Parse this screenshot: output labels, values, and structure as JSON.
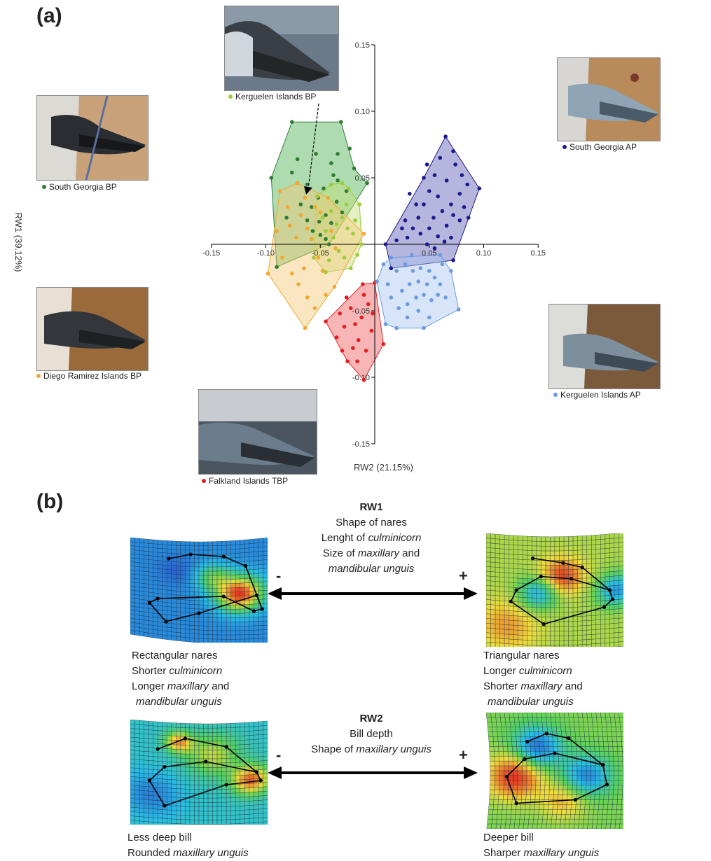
{
  "panel_a_label": "(a)",
  "panel_b_label": "(b)",
  "chart_data": {
    "type": "scatter",
    "xlabel": "RW2 (21.15%)",
    "ylabel": "RW1 (39.12%)",
    "xlim": [
      -0.15,
      0.15
    ],
    "ylim": [
      -0.15,
      0.15
    ],
    "x_ticks": [
      "-0.15",
      "-0.10",
      "-0.05",
      "0.05",
      "0.10",
      "0.15"
    ],
    "x_tick_values": [
      -0.15,
      -0.1,
      -0.05,
      0.05,
      0.1,
      0.15
    ],
    "y_ticks": [
      "0.15",
      "0.10",
      "0.05",
      "-0.05",
      "-0.10",
      "-0.15"
    ],
    "y_tick_values": [
      0.15,
      0.1,
      0.05,
      -0.05,
      -0.1,
      -0.15
    ],
    "series": [
      {
        "name": "South Georgia BP",
        "color": "#2e7d32",
        "fill": "#4caf50",
        "hull": [
          [
            -0.076,
            0.092
          ],
          [
            -0.031,
            0.092
          ],
          [
            -0.019,
            0.057
          ],
          [
            -0.007,
            0.046
          ],
          [
            -0.042,
            0.0
          ],
          [
            -0.09,
            -0.017
          ],
          [
            -0.095,
            0.05
          ]
        ],
        "points": [
          [
            -0.076,
            0.092
          ],
          [
            -0.031,
            0.092
          ],
          [
            -0.019,
            0.057
          ],
          [
            -0.007,
            0.046
          ],
          [
            -0.042,
            0.0
          ],
          [
            -0.09,
            -0.017
          ],
          [
            -0.095,
            0.05
          ],
          [
            -0.062,
            0.045
          ],
          [
            -0.058,
            0.028
          ],
          [
            -0.052,
            0.035
          ],
          [
            -0.047,
            0.042
          ],
          [
            -0.045,
            0.022
          ],
          [
            -0.04,
            0.016
          ],
          [
            -0.057,
            0.01
          ],
          [
            -0.051,
            0.017
          ],
          [
            -0.035,
            0.032
          ],
          [
            -0.03,
            0.024
          ],
          [
            -0.068,
            0.03
          ],
          [
            -0.071,
            0.064
          ],
          [
            -0.054,
            0.068
          ],
          [
            -0.04,
            0.061
          ],
          [
            -0.038,
            0.052
          ],
          [
            -0.034,
            0.048
          ],
          [
            -0.05,
            0.007
          ],
          [
            -0.045,
            0.004
          ],
          [
            -0.026,
            0.04
          ],
          [
            -0.062,
            0.018
          ],
          [
            -0.076,
            0.054
          ],
          [
            -0.081,
            0.02
          ],
          [
            -0.023,
            0.072
          ],
          [
            -0.034,
            0.068
          ]
        ]
      },
      {
        "name": "Kerguelen Islands BP",
        "color": "#9ccc3a",
        "fill": "#c5e17a",
        "hull": [
          [
            -0.053,
            0.036
          ],
          [
            -0.04,
            0.045
          ],
          [
            -0.03,
            0.046
          ],
          [
            -0.024,
            0.042
          ],
          [
            -0.014,
            0.03
          ],
          [
            -0.012,
            0.0
          ],
          [
            -0.022,
            -0.018
          ],
          [
            -0.045,
            -0.021
          ],
          [
            -0.056,
            -0.01
          ]
        ],
        "points": [
          [
            -0.053,
            0.036
          ],
          [
            -0.04,
            0.045
          ],
          [
            -0.03,
            0.046
          ],
          [
            -0.024,
            0.042
          ],
          [
            -0.014,
            0.03
          ],
          [
            -0.012,
            0.0
          ],
          [
            -0.022,
            -0.018
          ],
          [
            -0.045,
            -0.021
          ],
          [
            -0.056,
            -0.01
          ],
          [
            -0.04,
            0.025
          ],
          [
            -0.035,
            0.015
          ],
          [
            -0.03,
            0.02
          ],
          [
            -0.025,
            0.012
          ],
          [
            -0.02,
            0.008
          ],
          [
            -0.038,
            0.005
          ],
          [
            -0.033,
            -0.005
          ],
          [
            -0.028,
            -0.01
          ],
          [
            -0.045,
            0.01
          ],
          [
            -0.018,
            0.018
          ],
          [
            -0.042,
            -0.012
          ],
          [
            -0.026,
            0.03
          ],
          [
            -0.048,
            0.02
          ],
          [
            -0.016,
            -0.008
          ]
        ]
      },
      {
        "name": "Diego Ramirez Islands BP",
        "color": "#f0a830",
        "fill": "#f5c977",
        "hull": [
          [
            -0.087,
            0.04
          ],
          [
            -0.071,
            0.046
          ],
          [
            -0.043,
            0.035
          ],
          [
            -0.01,
            0.008
          ],
          [
            -0.037,
            -0.032
          ],
          [
            -0.064,
            -0.063
          ],
          [
            -0.098,
            -0.022
          ]
        ],
        "points": [
          [
            -0.087,
            0.04
          ],
          [
            -0.071,
            0.046
          ],
          [
            -0.043,
            0.035
          ],
          [
            -0.01,
            0.008
          ],
          [
            -0.037,
            -0.032
          ],
          [
            -0.064,
            -0.063
          ],
          [
            -0.098,
            -0.022
          ],
          [
            -0.08,
            0.028
          ],
          [
            -0.078,
            0.014
          ],
          [
            -0.072,
            0.005
          ],
          [
            -0.068,
            0.022
          ],
          [
            -0.062,
            0.012
          ],
          [
            -0.058,
            0.004
          ],
          [
            -0.052,
            -0.01
          ],
          [
            -0.048,
            -0.02
          ],
          [
            -0.065,
            -0.018
          ],
          [
            -0.07,
            -0.03
          ],
          [
            -0.062,
            -0.04
          ],
          [
            -0.055,
            -0.048
          ],
          [
            -0.085,
            -0.01
          ],
          [
            -0.09,
            0.01
          ],
          [
            -0.076,
            -0.022
          ],
          [
            -0.04,
            0.01
          ],
          [
            -0.036,
            -0.003
          ],
          [
            -0.05,
            0.024
          ],
          [
            -0.064,
            0.035
          ],
          [
            -0.045,
            -0.038
          ],
          [
            -0.055,
            0.028
          ]
        ]
      },
      {
        "name": "Falkland Islands TBP",
        "color": "#e02020",
        "fill": "#ef5a5a",
        "hull": [
          [
            -0.045,
            -0.058
          ],
          [
            -0.011,
            -0.03
          ],
          [
            0.0,
            -0.029
          ],
          [
            0.008,
            -0.075
          ],
          [
            -0.01,
            -0.102
          ],
          [
            -0.025,
            -0.088
          ]
        ],
        "points": [
          [
            -0.045,
            -0.058
          ],
          [
            -0.011,
            -0.03
          ],
          [
            0.0,
            -0.029
          ],
          [
            0.008,
            -0.075
          ],
          [
            -0.01,
            -0.102
          ],
          [
            -0.025,
            -0.088
          ],
          [
            -0.032,
            -0.052
          ],
          [
            -0.028,
            -0.062
          ],
          [
            -0.022,
            -0.048
          ],
          [
            -0.018,
            -0.06
          ],
          [
            -0.015,
            -0.072
          ],
          [
            -0.02,
            -0.078
          ],
          [
            -0.012,
            -0.055
          ],
          [
            -0.006,
            -0.045
          ],
          [
            -0.003,
            -0.065
          ],
          [
            -0.008,
            -0.08
          ],
          [
            -0.016,
            -0.088
          ],
          [
            -0.035,
            -0.07
          ],
          [
            -0.026,
            -0.04
          ],
          [
            -0.002,
            -0.052
          ],
          [
            -0.03,
            -0.08
          ],
          [
            -0.01,
            -0.038
          ]
        ]
      },
      {
        "name": "South Georgia AP",
        "color": "#1a1a8c",
        "fill": "#5a5ab4",
        "hull": [
          [
            0.065,
            0.081
          ],
          [
            0.096,
            0.042
          ],
          [
            0.072,
            -0.012
          ],
          [
            0.015,
            -0.018
          ],
          [
            0.01,
            0.0
          ],
          [
            0.045,
            0.05
          ]
        ],
        "points": [
          [
            0.065,
            0.081
          ],
          [
            0.096,
            0.042
          ],
          [
            0.072,
            -0.012
          ],
          [
            0.015,
            -0.018
          ],
          [
            0.01,
            0.0
          ],
          [
            0.045,
            0.05
          ],
          [
            0.06,
            0.065
          ],
          [
            0.072,
            0.07
          ],
          [
            0.055,
            0.052
          ],
          [
            0.05,
            0.04
          ],
          [
            0.058,
            0.036
          ],
          [
            0.066,
            0.048
          ],
          [
            0.074,
            0.06
          ],
          [
            0.08,
            0.052
          ],
          [
            0.085,
            0.045
          ],
          [
            0.078,
            0.038
          ],
          [
            0.07,
            0.03
          ],
          [
            0.062,
            0.025
          ],
          [
            0.054,
            0.02
          ],
          [
            0.045,
            0.03
          ],
          [
            0.04,
            0.02
          ],
          [
            0.035,
            0.012
          ],
          [
            0.03,
            0.005
          ],
          [
            0.025,
            0.012
          ],
          [
            0.02,
            0.003
          ],
          [
            0.042,
            0.008
          ],
          [
            0.05,
            0.012
          ],
          [
            0.058,
            0.006
          ],
          [
            0.066,
            0.014
          ],
          [
            0.072,
            0.022
          ],
          [
            0.078,
            0.018
          ],
          [
            0.064,
            0.002
          ],
          [
            0.055,
            -0.003
          ],
          [
            0.048,
            0.0
          ],
          [
            0.038,
            0.03
          ],
          [
            0.032,
            0.038
          ],
          [
            0.048,
            0.06
          ],
          [
            0.07,
            0.005
          ],
          [
            0.082,
            0.028
          ],
          [
            0.086,
            0.02
          ],
          [
            0.028,
            0.018
          ]
        ]
      },
      {
        "name": "Kerguelen Islands AP",
        "color": "#6a9be0",
        "fill": "#a8c6f0",
        "hull": [
          [
            0.015,
            -0.01
          ],
          [
            0.06,
            -0.008
          ],
          [
            0.07,
            -0.02
          ],
          [
            0.077,
            -0.049
          ],
          [
            0.045,
            -0.063
          ],
          [
            0.02,
            -0.063
          ],
          [
            0.01,
            -0.06
          ],
          [
            0.002,
            -0.028
          ],
          [
            0.008,
            -0.015
          ]
        ],
        "points": [
          [
            0.015,
            -0.01
          ],
          [
            0.06,
            -0.008
          ],
          [
            0.07,
            -0.02
          ],
          [
            0.077,
            -0.049
          ],
          [
            0.045,
            -0.063
          ],
          [
            0.02,
            -0.063
          ],
          [
            0.01,
            -0.06
          ],
          [
            0.002,
            -0.028
          ],
          [
            0.008,
            -0.015
          ],
          [
            0.02,
            -0.02
          ],
          [
            0.028,
            -0.015
          ],
          [
            0.035,
            -0.02
          ],
          [
            0.042,
            -0.018
          ],
          [
            0.05,
            -0.02
          ],
          [
            0.055,
            -0.025
          ],
          [
            0.06,
            -0.03
          ],
          [
            0.048,
            -0.03
          ],
          [
            0.04,
            -0.028
          ],
          [
            0.032,
            -0.03
          ],
          [
            0.025,
            -0.035
          ],
          [
            0.03,
            -0.045
          ],
          [
            0.038,
            -0.04
          ],
          [
            0.045,
            -0.038
          ],
          [
            0.052,
            -0.042
          ],
          [
            0.058,
            -0.038
          ],
          [
            0.065,
            -0.04
          ],
          [
            0.04,
            -0.05
          ],
          [
            0.03,
            -0.055
          ],
          [
            0.022,
            -0.048
          ],
          [
            0.015,
            -0.04
          ],
          [
            0.012,
            -0.03
          ],
          [
            0.05,
            -0.055
          ],
          [
            0.034,
            -0.008
          ],
          [
            0.062,
            -0.015
          ]
        ]
      }
    ]
  },
  "photos": {
    "kerguelen_bp": {
      "label": "Kerguelen Islands BP",
      "color": "#9ccc3a"
    },
    "south_georgia_bp": {
      "label": "South Georgia BP",
      "color": "#2e7d32"
    },
    "diego_ramirez_bp": {
      "label": "Diego Ramirez Islands BP",
      "color": "#f0a830"
    },
    "falkland_tbp": {
      "label": "Falkland Islands TBP",
      "color": "#e02020"
    },
    "south_georgia_ap": {
      "label": "South Georgia AP",
      "color": "#1a1a8c"
    },
    "kerguelen_ap": {
      "label": "Kerguelen Islands AP",
      "color": "#6a9be0"
    }
  },
  "rw1": {
    "title": "RW1",
    "line1": "Shape of nares",
    "line2_pre": "Lenght of ",
    "line2_it": "culminicorn",
    "line3_pre": "Size of ",
    "line3_it": "maxillary",
    "line3_post": " and",
    "line4_it": "mandibular unguis",
    "minus": "-",
    "plus": "+",
    "left_desc": {
      "l1": "Rectangular nares",
      "l2_pre": "Shorter ",
      "l2_it": "culminicorn",
      "l3_pre": "Longer ",
      "l3_it": "maxillary",
      "l3_post": " and",
      "l4_it": "mandibular unguis"
    },
    "right_desc": {
      "l1": "Triangular nares",
      "l2_pre": "Longer ",
      "l2_it": "culminicorn",
      "l3_pre": "Shorter ",
      "l3_it": "maxillary",
      "l3_post": " and",
      "l4_it": "mandibular unguis"
    }
  },
  "rw2": {
    "title": "RW2",
    "line1": "Bill depth",
    "line2_pre": "Shape of ",
    "line2_it": "maxillary unguis",
    "minus": "-",
    "plus": "+",
    "left_desc": {
      "l1": "Less deep bill",
      "l2_pre": "Rounded ",
      "l2_it": "maxillary unguis"
    },
    "right_desc": {
      "l1": "Deeper bill",
      "l2_pre": "Sharper ",
      "l2_it": "maxillary unguis"
    }
  }
}
